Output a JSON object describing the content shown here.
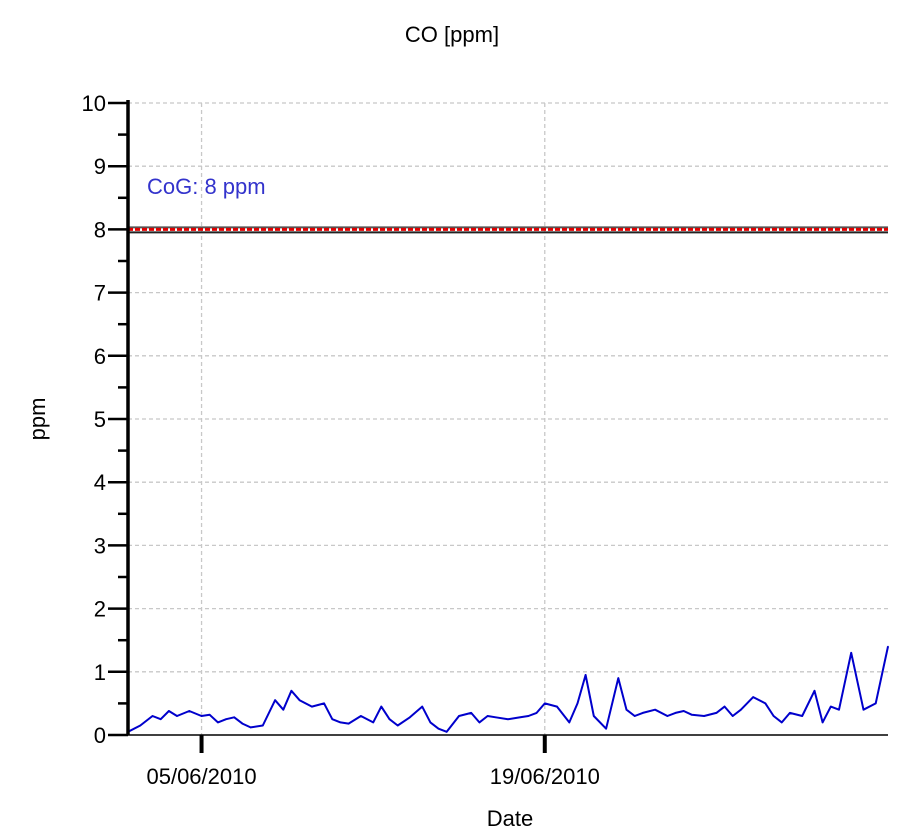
{
  "chart_data": {
    "type": "line",
    "title": "CO [ppm]",
    "xlabel": "Date",
    "ylabel": "ppm",
    "ylim": [
      0,
      10
    ],
    "yticks": [
      0,
      1,
      2,
      3,
      4,
      5,
      6,
      7,
      8,
      9,
      10
    ],
    "ytick_labels": [
      "0",
      "1",
      "2",
      "3",
      "4",
      "5",
      "6",
      "7",
      "8",
      "9",
      "10"
    ],
    "xlim": [
      "2010-06-02",
      "2010-07-03"
    ],
    "xticks": [
      "2010-06-05",
      "2010-06-19"
    ],
    "xtick_labels": [
      "05/06/2010",
      "19/06/2010"
    ],
    "grid": true,
    "reference_line": {
      "value": 8,
      "label": "CoG: 8 ppm",
      "color": "#e00000",
      "label_color": "#3333cc"
    },
    "series": [
      {
        "color": "#0000cc",
        "x": [
          "2010-06-02",
          "2010-06-02",
          "2010-06-03",
          "2010-06-03",
          "2010-06-03",
          "2010-06-04",
          "2010-06-04",
          "2010-06-05",
          "2010-06-05",
          "2010-06-05",
          "2010-06-06",
          "2010-06-06",
          "2010-06-06",
          "2010-06-07",
          "2010-06-07",
          "2010-06-08",
          "2010-06-08",
          "2010-06-08",
          "2010-06-09",
          "2010-06-09",
          "2010-06-10",
          "2010-06-10",
          "2010-06-10",
          "2010-06-11",
          "2010-06-11",
          "2010-06-12",
          "2010-06-12",
          "2010-06-12",
          "2010-06-13",
          "2010-06-13",
          "2010-06-14",
          "2010-06-14",
          "2010-06-14",
          "2010-06-15",
          "2010-06-15",
          "2010-06-16",
          "2010-06-16",
          "2010-06-16",
          "2010-06-17",
          "2010-06-17",
          "2010-06-18",
          "2010-06-18",
          "2010-06-18",
          "2010-06-19",
          "2010-06-19",
          "2010-06-20",
          "2010-06-20",
          "2010-06-20",
          "2010-06-21",
          "2010-06-21",
          "2010-06-22",
          "2010-06-22",
          "2010-06-22",
          "2010-06-23",
          "2010-06-23",
          "2010-06-24",
          "2010-06-24",
          "2010-06-24",
          "2010-06-25",
          "2010-06-25",
          "2010-06-26",
          "2010-06-26",
          "2010-06-26",
          "2010-06-27",
          "2010-06-27",
          "2010-06-28",
          "2010-06-28",
          "2010-06-28",
          "2010-06-29",
          "2010-06-29",
          "2010-06-30",
          "2010-06-30",
          "2010-06-30",
          "2010-07-01",
          "2010-07-01",
          "2010-07-02",
          "2010-07-02",
          "2010-07-03"
        ],
        "values": [
          0.05,
          0.15,
          0.3,
          0.25,
          0.38,
          0.3,
          0.38,
          0.3,
          0.32,
          0.2,
          0.25,
          0.28,
          0.18,
          0.12,
          0.15,
          0.55,
          0.4,
          0.7,
          0.55,
          0.45,
          0.5,
          0.25,
          0.2,
          0.18,
          0.3,
          0.2,
          0.45,
          0.25,
          0.15,
          0.28,
          0.45,
          0.2,
          0.1,
          0.05,
          0.3,
          0.35,
          0.2,
          0.3,
          0.28,
          0.25,
          0.28,
          0.3,
          0.35,
          0.5,
          0.45,
          0.2,
          0.5,
          0.95,
          0.3,
          0.1,
          0.9,
          0.4,
          0.3,
          0.35,
          0.4,
          0.3,
          0.35,
          0.38,
          0.32,
          0.3,
          0.35,
          0.45,
          0.3,
          0.4,
          0.6,
          0.5,
          0.3,
          0.2,
          0.35,
          0.3,
          0.7,
          0.2,
          0.45,
          0.4,
          1.3,
          0.4,
          0.5,
          1.4
        ]
      }
    ]
  }
}
